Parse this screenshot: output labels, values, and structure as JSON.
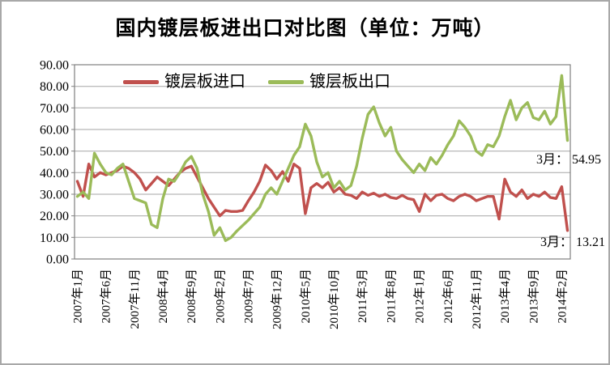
{
  "title": "国内镀层板进出口对比图（单位：万吨）",
  "legend": [
    {
      "label": "镀层板进口",
      "color": "#C0504D"
    },
    {
      "label": "镀层板出口",
      "color": "#9BBB59"
    }
  ],
  "annotations": {
    "export_latest": "3月： 54.95",
    "import_latest": "3月： 13.21"
  },
  "colors": {
    "grid": "#A6A6A6",
    "plot_border": "#808080",
    "axis_text": "#000000",
    "background": "#FFFFFF"
  },
  "chart_data": {
    "type": "line",
    "title": "国内镀层板进出口对比图（单位：万吨）",
    "unit": "万吨",
    "ylim": [
      0,
      90
    ],
    "y_tick_labels": [
      "90.00",
      "80.00",
      "70.00",
      "60.00",
      "50.00",
      "40.00",
      "30.00",
      "20.00",
      "10.00",
      "0.00"
    ],
    "x_tick_labels": [
      "2007年1月",
      "2007年6月",
      "2007年11月",
      "2008年4月",
      "2008年9月",
      "2009年2月",
      "2009年7月",
      "2009年12月",
      "2010年5月",
      "2010年10月",
      "2011年3月",
      "2011年8月",
      "2012年1月",
      "2012年6月",
      "2012年11月",
      "2013年4月",
      "2013年9月",
      "2014年2月"
    ],
    "x_tick_indices": [
      0,
      5,
      10,
      15,
      20,
      25,
      30,
      35,
      40,
      45,
      50,
      55,
      60,
      65,
      70,
      75,
      80,
      85
    ],
    "x_range_note": "monthly points 2007-01 through 2014-03",
    "n_points": 87,
    "grid": true,
    "legend_position": "top-center",
    "series": [
      {
        "name": "镀层板进口",
        "color": "#C0504D",
        "values": [
          36,
          29,
          44,
          38,
          40,
          39,
          40,
          41,
          43,
          42,
          40,
          37,
          32,
          35,
          38,
          36,
          34,
          37,
          40,
          42,
          43,
          38,
          33,
          28,
          24,
          20,
          22.5,
          22,
          22,
          22.5,
          27,
          31,
          36,
          43.5,
          41,
          37,
          40.5,
          36,
          44,
          42,
          21,
          33,
          35,
          33,
          35.5,
          31,
          33,
          30,
          29.5,
          28,
          31,
          29.5,
          30.5,
          29,
          30,
          28.5,
          28,
          29.5,
          28,
          27.5,
          22,
          30,
          27,
          29.5,
          30,
          28,
          27,
          29,
          30,
          29,
          27,
          28,
          29,
          29,
          18.5,
          37,
          31,
          29,
          32,
          28,
          30,
          29,
          31,
          28.5,
          28,
          33.5,
          13.21
        ]
      },
      {
        "name": "镀层板出口",
        "color": "#9BBB59",
        "values": [
          29,
          31,
          28,
          49,
          44,
          40,
          39,
          42,
          44,
          36,
          28,
          27,
          26,
          16,
          14.5,
          28,
          37,
          36,
          40,
          45,
          47.5,
          42,
          30,
          22,
          11,
          14.5,
          8.5,
          10,
          13,
          15.5,
          18,
          21,
          24,
          30,
          33,
          30,
          36,
          42,
          48,
          52,
          62.5,
          57,
          45,
          38,
          40,
          33,
          36,
          32,
          34,
          43,
          56,
          67,
          70.5,
          63,
          57,
          61,
          50,
          46,
          43,
          40,
          44,
          41,
          47,
          44,
          48,
          53,
          57,
          64,
          61,
          57,
          50,
          48,
          53,
          52,
          57,
          66,
          73.5,
          64.5,
          70,
          72.5,
          65.5,
          64.5,
          68.5,
          62.5,
          66,
          85,
          54.95
        ]
      }
    ],
    "annotations": [
      {
        "series": "镀层板出口",
        "text": "3月： 54.95",
        "value": 54.95
      },
      {
        "series": "镀层板进口",
        "text": "3月： 13.21",
        "value": 13.21
      }
    ]
  }
}
